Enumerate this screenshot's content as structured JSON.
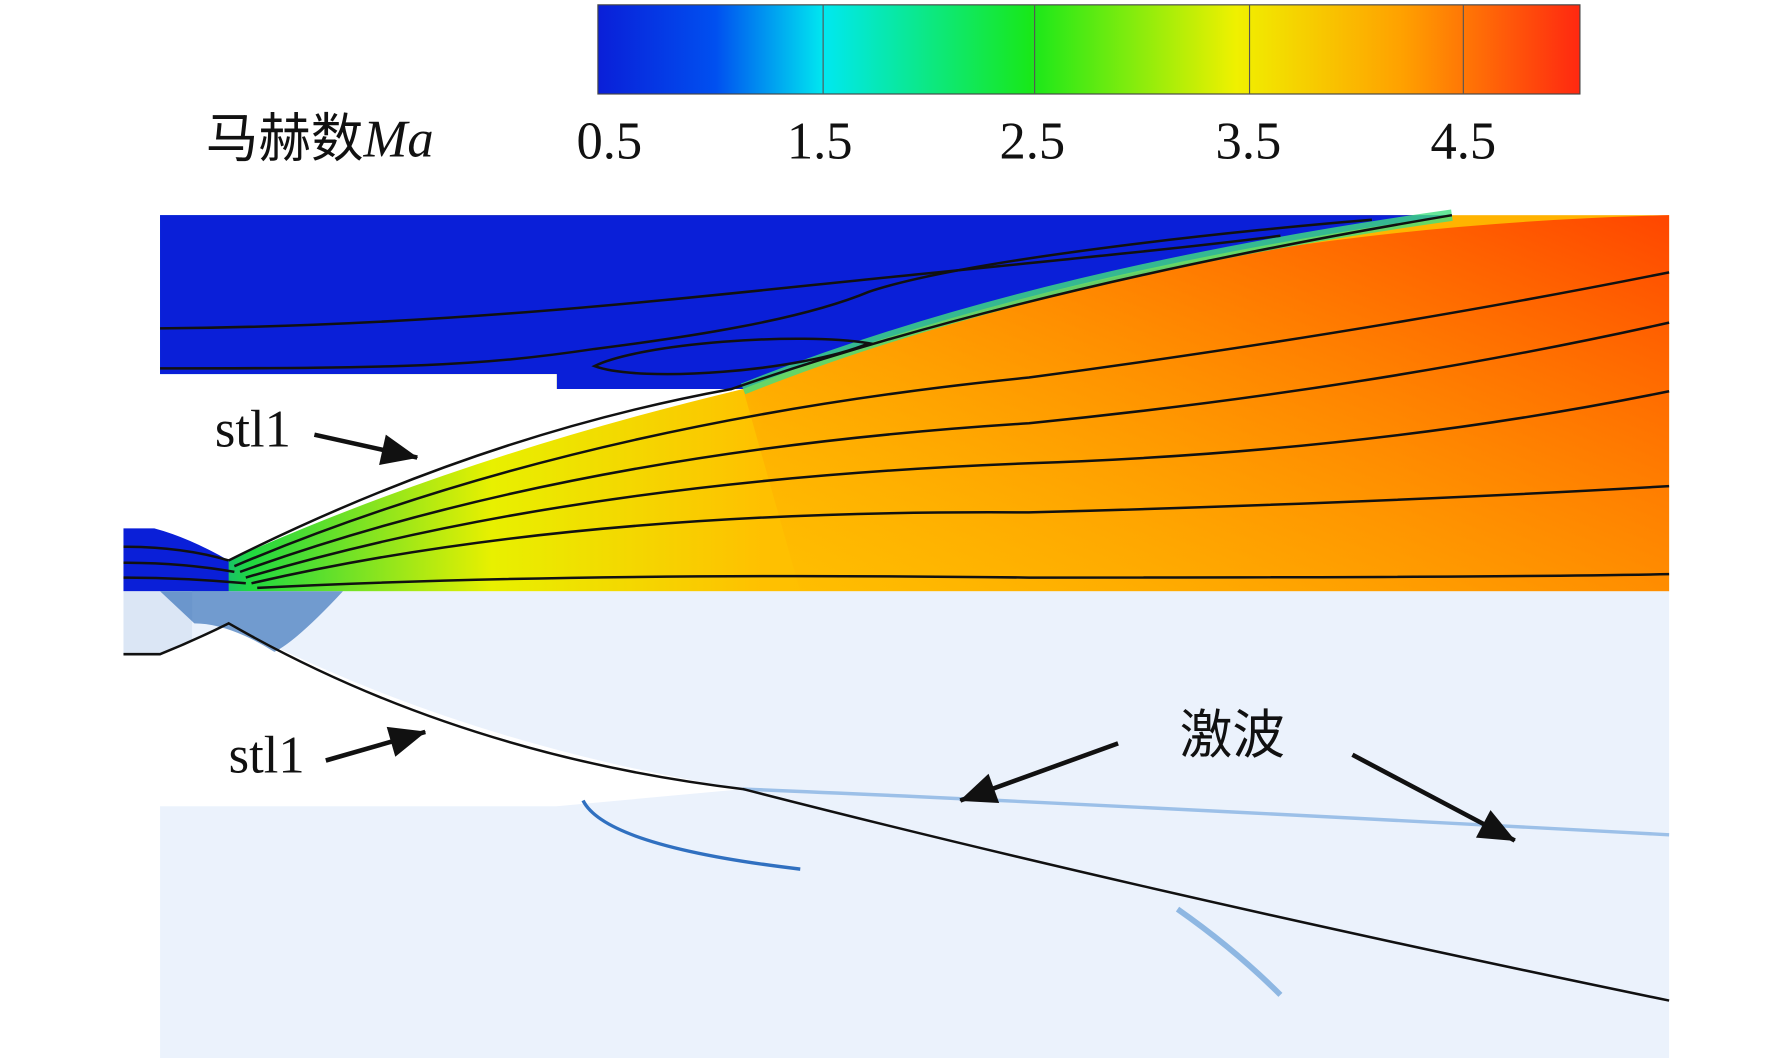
{
  "colorbar": {
    "label": "马赫数",
    "symbol": "Ma",
    "ticks": [
      0.5,
      1.5,
      2.5,
      3.5,
      4.5
    ]
  },
  "annotations": {
    "stl_top": "stl1",
    "stl_bottom": "stl1",
    "shock": "激波"
  }
}
